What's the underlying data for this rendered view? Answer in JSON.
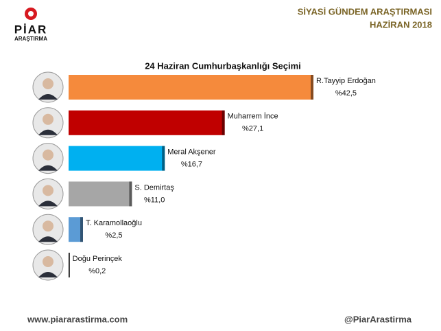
{
  "brand": {
    "name": "PİAR",
    "sub": "ARAŞTIRMA"
  },
  "header": {
    "line1": "SİYASİ GÜNDEM ARAŞTIRMASI",
    "line2": "HAZİRAN 2018"
  },
  "chart_data": {
    "type": "bar",
    "orientation": "horizontal",
    "title": "24 Haziran Cumhurbaşkanlığı Seçimi",
    "categories": [
      "R.Tayyip Erdoğan",
      "Muharrem İnce",
      "Meral Akşener",
      "S. Demirtaş",
      "T. Karamollaoğlu",
      "Doğu Perinçek"
    ],
    "values": [
      42.5,
      27.1,
      16.7,
      11.0,
      2.5,
      0.2
    ],
    "value_labels": [
      "%42,5",
      "%27,1",
      "%16,7",
      "%11,0",
      "%2,5",
      "%0,2"
    ],
    "colors": [
      "#f58a3c",
      "#c00000",
      "#00b0f0",
      "#a6a6a6",
      "#5b9bd5",
      "#111111"
    ]
  },
  "footer": {
    "website": "www.piararastirma.com",
    "handle": "@PiarArastirma"
  }
}
